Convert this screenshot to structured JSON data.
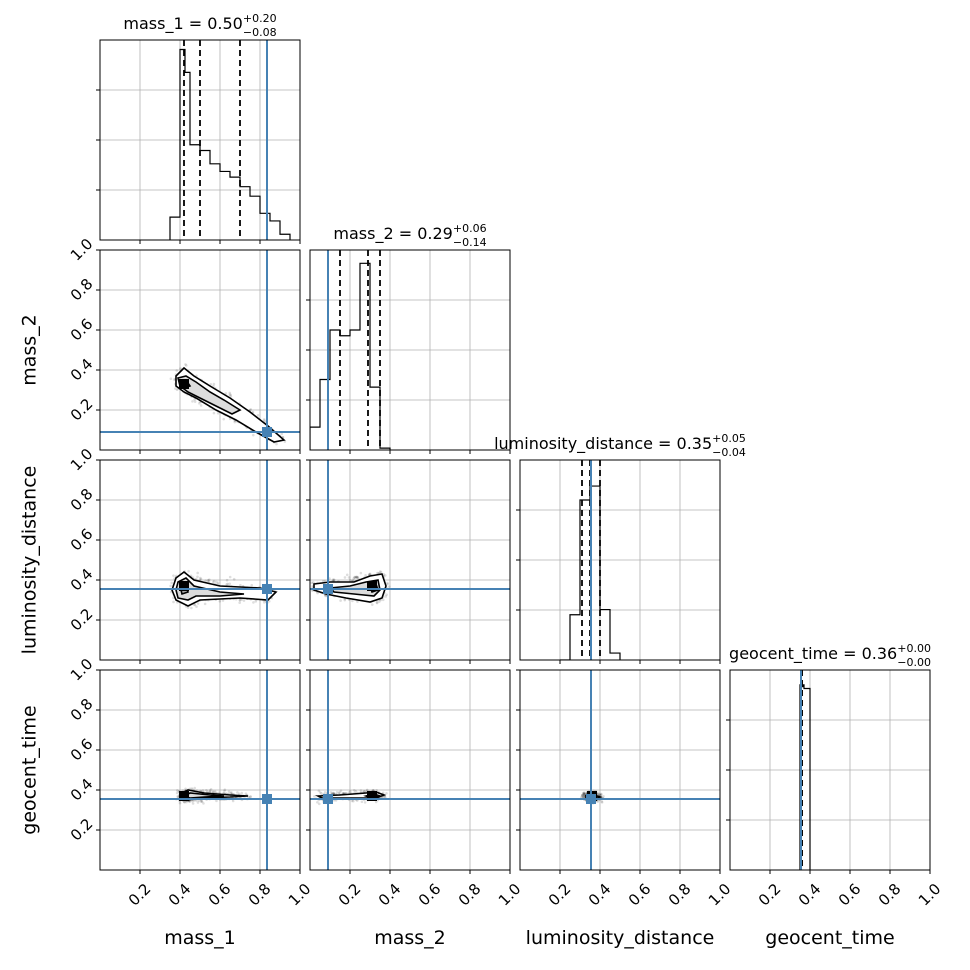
{
  "chart_data": {
    "type": "corner",
    "parameters": [
      "mass_1",
      "mass_2",
      "luminosity_distance",
      "geocent_time"
    ],
    "axis_labels": [
      "mass_1",
      "mass_2",
      "luminosity_distance",
      "geocent_time"
    ],
    "axis_range": [
      0,
      1
    ],
    "tick_labels": [
      "0.2",
      "0.4",
      "0.6",
      "0.8",
      "1.0"
    ],
    "grid": true,
    "truth_color": "#4682b4",
    "truths": [
      0.835,
      0.09,
      0.355,
      0.355
    ],
    "diagonal_titles": [
      {
        "main": "mass_1 = 0.50",
        "sup": "+0.20",
        "sub": "−0.08"
      },
      {
        "main": "mass_2 = 0.29",
        "sup": "+0.06",
        "sub": "−0.14"
      },
      {
        "main": "luminosity_distance = 0.35",
        "sup": "+0.05",
        "sub": "−0.04"
      },
      {
        "main": "geocent_time = 0.36",
        "sup": "+0.00",
        "sub": "−0.00"
      }
    ],
    "quantiles": [
      [
        0.42,
        0.5,
        0.7
      ],
      [
        0.15,
        0.29,
        0.35
      ],
      [
        0.31,
        0.35,
        0.4
      ],
      [
        0.355,
        0.36,
        0.36
      ]
    ],
    "histograms": [
      {
        "edges": [
          0.35,
          0.4,
          0.425,
          0.45,
          0.5,
          0.55,
          0.6,
          0.65,
          0.7,
          0.75,
          0.8,
          0.85,
          0.9,
          0.95
        ],
        "values": [
          0.12,
          1.0,
          0.88,
          0.5,
          0.47,
          0.4,
          0.36,
          0.33,
          0.28,
          0.23,
          0.14,
          0.1,
          0.03
        ],
        "ymax": 1.05
      },
      {
        "edges": [
          0.0,
          0.05,
          0.1,
          0.15,
          0.2,
          0.25,
          0.3,
          0.35,
          0.4
        ],
        "values": [
          0.12,
          0.37,
          0.63,
          0.6,
          0.63,
          0.98,
          0.33,
          0.01
        ],
        "ymax": 1.05
      },
      {
        "edges": [
          0.2,
          0.25,
          0.3,
          0.35,
          0.4,
          0.45,
          0.5
        ],
        "values": [
          0.0,
          0.26,
          0.92,
          1.0,
          0.29,
          0.04
        ],
        "ymax": 1.15
      },
      {
        "edges": [
          0.35,
          0.355,
          0.36,
          0.365,
          0.37,
          0.4
        ],
        "values": [
          1.0,
          1.0,
          0.99,
          1.0,
          0.98
        ],
        "ymax": 1.08
      }
    ],
    "contours_2d": {
      "1-0": [
        [
          [
            0.38,
            0.37
          ],
          [
            0.42,
            0.41
          ],
          [
            0.47,
            0.37
          ],
          [
            0.55,
            0.32
          ],
          [
            0.65,
            0.26
          ],
          [
            0.75,
            0.19
          ],
          [
            0.84,
            0.12
          ],
          [
            0.92,
            0.05
          ],
          [
            0.87,
            0.04
          ],
          [
            0.78,
            0.09
          ],
          [
            0.68,
            0.15
          ],
          [
            0.58,
            0.2
          ],
          [
            0.48,
            0.26
          ],
          [
            0.42,
            0.29
          ],
          [
            0.38,
            0.32
          ]
        ],
        [
          [
            0.39,
            0.36
          ],
          [
            0.43,
            0.37
          ],
          [
            0.48,
            0.34
          ],
          [
            0.55,
            0.29
          ],
          [
            0.62,
            0.25
          ],
          [
            0.7,
            0.2
          ],
          [
            0.66,
            0.18
          ],
          [
            0.58,
            0.22
          ],
          [
            0.5,
            0.26
          ],
          [
            0.44,
            0.29
          ],
          [
            0.4,
            0.32
          ]
        ],
        [
          [
            0.4,
            0.34
          ],
          [
            0.43,
            0.35
          ],
          [
            0.45,
            0.32
          ],
          [
            0.42,
            0.31
          ]
        ]
      ],
      "2-0": [
        [
          [
            0.38,
            0.41
          ],
          [
            0.42,
            0.44
          ],
          [
            0.47,
            0.4
          ],
          [
            0.6,
            0.37
          ],
          [
            0.8,
            0.36
          ],
          [
            0.88,
            0.34
          ],
          [
            0.84,
            0.3
          ],
          [
            0.7,
            0.31
          ],
          [
            0.5,
            0.3
          ],
          [
            0.44,
            0.27
          ],
          [
            0.38,
            0.3
          ],
          [
            0.36,
            0.35
          ]
        ],
        [
          [
            0.39,
            0.39
          ],
          [
            0.43,
            0.41
          ],
          [
            0.47,
            0.37
          ],
          [
            0.6,
            0.34
          ],
          [
            0.72,
            0.33
          ],
          [
            0.6,
            0.32
          ],
          [
            0.48,
            0.32
          ],
          [
            0.44,
            0.3
          ],
          [
            0.39,
            0.31
          ],
          [
            0.38,
            0.35
          ]
        ],
        [
          [
            0.4,
            0.37
          ],
          [
            0.43,
            0.38
          ],
          [
            0.44,
            0.34
          ],
          [
            0.41,
            0.33
          ]
        ]
      ],
      "2-1": [
        [
          [
            0.02,
            0.38
          ],
          [
            0.1,
            0.39
          ],
          [
            0.22,
            0.39
          ],
          [
            0.3,
            0.42
          ],
          [
            0.36,
            0.43
          ],
          [
            0.38,
            0.37
          ],
          [
            0.36,
            0.31
          ],
          [
            0.3,
            0.29
          ],
          [
            0.18,
            0.31
          ],
          [
            0.08,
            0.33
          ],
          [
            0.02,
            0.35
          ]
        ],
        [
          [
            0.1,
            0.36
          ],
          [
            0.2,
            0.37
          ],
          [
            0.28,
            0.39
          ],
          [
            0.34,
            0.4
          ],
          [
            0.35,
            0.35
          ],
          [
            0.32,
            0.32
          ],
          [
            0.22,
            0.33
          ],
          [
            0.12,
            0.34
          ]
        ],
        [
          [
            0.3,
            0.37
          ],
          [
            0.33,
            0.38
          ],
          [
            0.34,
            0.35
          ],
          [
            0.31,
            0.34
          ]
        ]
      ],
      "3-0": [
        [
          [
            0.4,
            0.38
          ],
          [
            0.44,
            0.4
          ],
          [
            0.52,
            0.385
          ],
          [
            0.65,
            0.375
          ],
          [
            0.74,
            0.37
          ],
          [
            0.65,
            0.365
          ],
          [
            0.5,
            0.36
          ],
          [
            0.44,
            0.35
          ],
          [
            0.4,
            0.36
          ]
        ],
        [
          [
            0.42,
            0.37
          ],
          [
            0.45,
            0.385
          ],
          [
            0.55,
            0.375
          ],
          [
            0.62,
            0.37
          ],
          [
            0.52,
            0.365
          ],
          [
            0.45,
            0.36
          ]
        ]
      ],
      "3-1": [
        [
          [
            0.04,
            0.37
          ],
          [
            0.15,
            0.375
          ],
          [
            0.28,
            0.385
          ],
          [
            0.33,
            0.39
          ],
          [
            0.37,
            0.375
          ],
          [
            0.33,
            0.36
          ],
          [
            0.2,
            0.36
          ],
          [
            0.06,
            0.36
          ]
        ],
        [
          [
            0.28,
            0.37
          ],
          [
            0.32,
            0.38
          ],
          [
            0.35,
            0.37
          ],
          [
            0.31,
            0.36
          ]
        ]
      ],
      "3-2": [
        [
          [
            0.33,
            0.372
          ],
          [
            0.37,
            0.375
          ],
          [
            0.4,
            0.365
          ],
          [
            0.37,
            0.355
          ],
          [
            0.33,
            0.358
          ]
        ]
      ]
    },
    "density_modes": {
      "1-0": {
        "x": 0.42,
        "y": 0.33
      },
      "2-0": {
        "x": 0.42,
        "y": 0.37
      },
      "2-1": {
        "x": 0.31,
        "y": 0.37
      },
      "3-0": {
        "x": 0.42,
        "y": 0.37
      },
      "3-1": {
        "x": 0.31,
        "y": 0.37
      },
      "3-2": {
        "x": 0.36,
        "y": 0.37
      }
    }
  }
}
